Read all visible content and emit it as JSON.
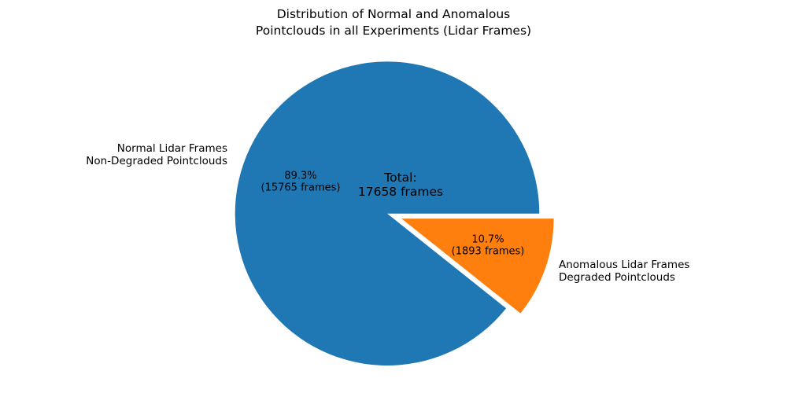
{
  "chart_data": {
    "type": "pie",
    "title": "Distribution of Normal and Anomalous\nPointclouds in all Experiments (Lidar Frames)",
    "total_frames": 17658,
    "center_annotation": "Total:\n17658 frames",
    "start_angle": 0,
    "counterclockwise": true,
    "background": "#ffffff",
    "slices": [
      {
        "name": "normal",
        "label": "Normal Lidar Frames\nNon-Degraded Pointclouds",
        "value": 15765,
        "percent": 89.3,
        "autopct_label": "89.3%\n(15765 frames)",
        "color": "#1f77b4",
        "explode": 0
      },
      {
        "name": "anomalous",
        "label": "Anomalous Lidar Frames\nDegraded Pointclouds",
        "value": 1893,
        "percent": 10.7,
        "autopct_label": "10.7%\n(1893 frames)",
        "color": "#ff7f0e",
        "explode": 0.1
      }
    ]
  }
}
